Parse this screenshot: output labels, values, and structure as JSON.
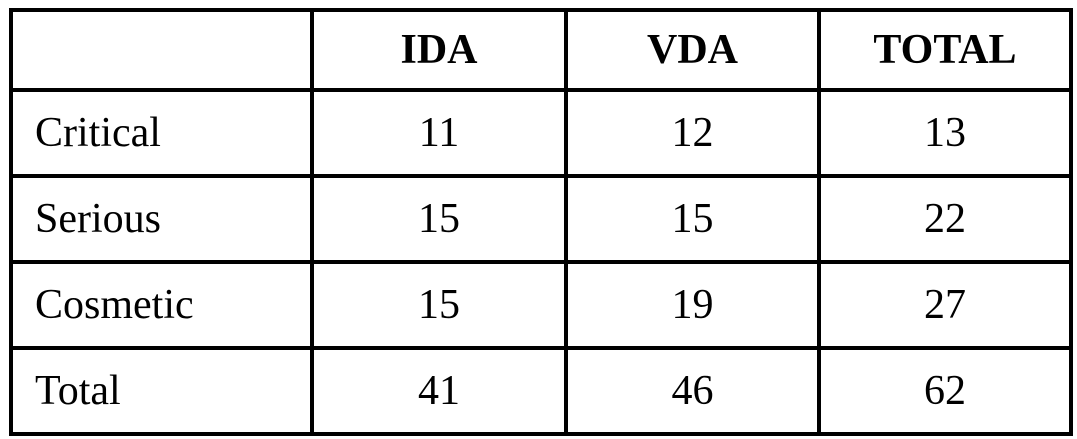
{
  "table": {
    "columns": [
      "",
      "IDA",
      "VDA",
      "TOTAL"
    ],
    "rows": [
      {
        "label": "Critical",
        "ida": "11",
        "vda": "12",
        "total": "13"
      },
      {
        "label": "Serious",
        "ida": "15",
        "vda": "15",
        "total": "22"
      },
      {
        "label": "Cosmetic",
        "ida": "15",
        "vda": "19",
        "total": "27"
      },
      {
        "label": "Total",
        "ida": "41",
        "vda": "46",
        "total": "62"
      }
    ]
  },
  "colors": {
    "border": "#000000",
    "text": "#000000",
    "background": "#ffffff"
  }
}
